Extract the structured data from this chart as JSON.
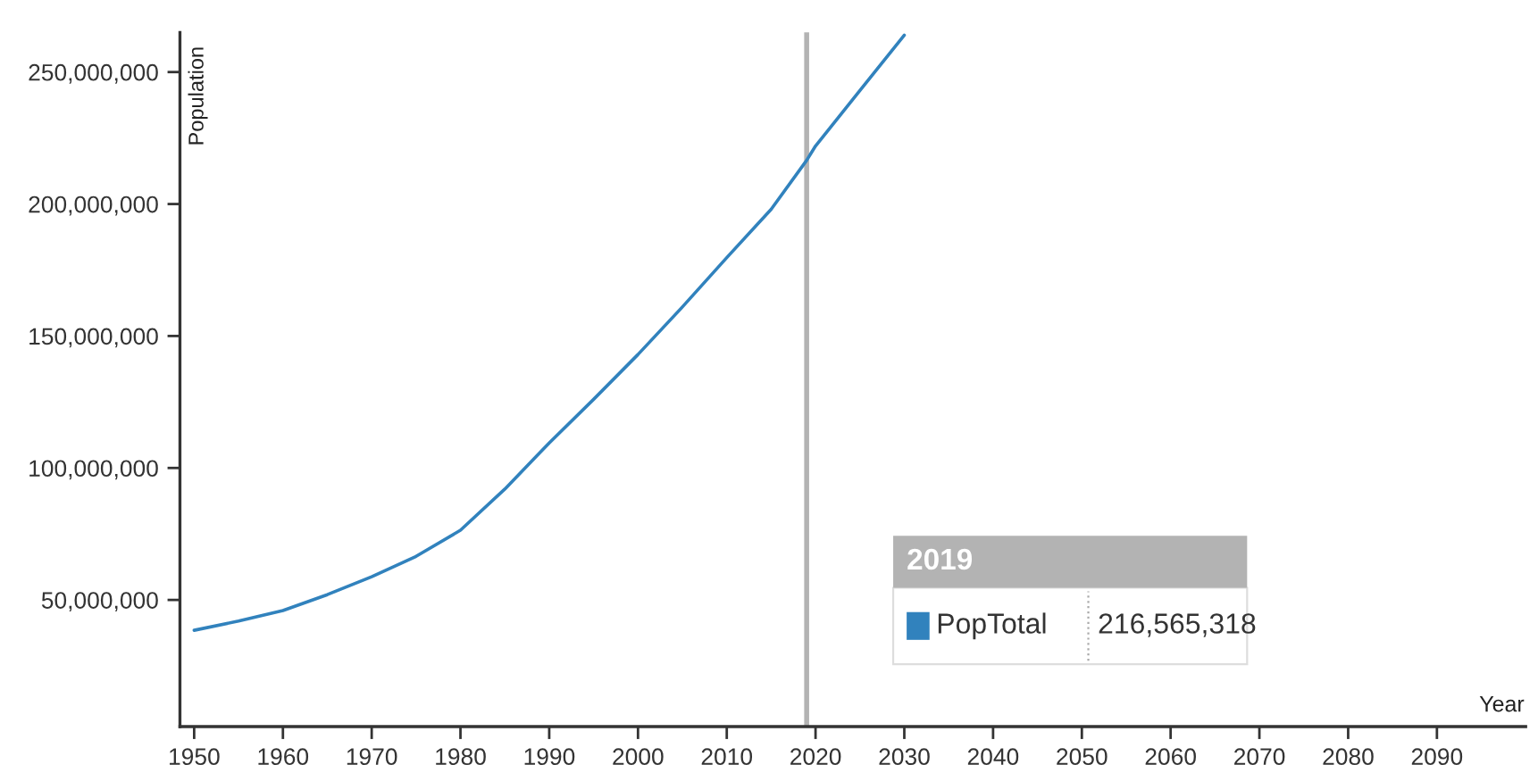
{
  "chart_data": {
    "type": "line",
    "xlabel": "Year",
    "ylabel": "Population",
    "x": [
      1950,
      1955,
      1960,
      1965,
      1970,
      1975,
      1980,
      1985,
      1990,
      1995,
      2000,
      2005,
      2010,
      2015,
      2019,
      2020,
      2025,
      2030
    ],
    "series": [
      {
        "name": "PopTotal",
        "color": "#3182bd",
        "values": [
          38500000,
          42000000,
          46000000,
          52000000,
          58800000,
          66500000,
          76400000,
          92000000,
          109500000,
          126000000,
          143000000,
          161000000,
          179700000,
          198000000,
          216565318,
          222000000,
          243000000,
          264000000
        ]
      }
    ],
    "xlim": [
      1948.4,
      2100
    ],
    "xticks": [
      1950,
      1960,
      1970,
      1980,
      1990,
      2000,
      2010,
      2020,
      2030,
      2040,
      2050,
      2060,
      2070,
      2080,
      2090
    ],
    "ylim": [
      2000000,
      265000000
    ],
    "yticks": [
      {
        "value": 50000000,
        "label": "50,000,000"
      },
      {
        "value": 100000000,
        "label": "100,000,000"
      },
      {
        "value": 150000000,
        "label": "150,000,000"
      },
      {
        "value": 200000000,
        "label": "200,000,000"
      },
      {
        "value": 250000000,
        "label": "250,000,000"
      }
    ],
    "ref_lines": [
      {
        "axis": "x",
        "value": 2019,
        "color": "#b3b3b3"
      }
    ],
    "annotations": [
      "2019",
      "216,565,318"
    ],
    "legend": "bottom right",
    "grid": false
  }
}
